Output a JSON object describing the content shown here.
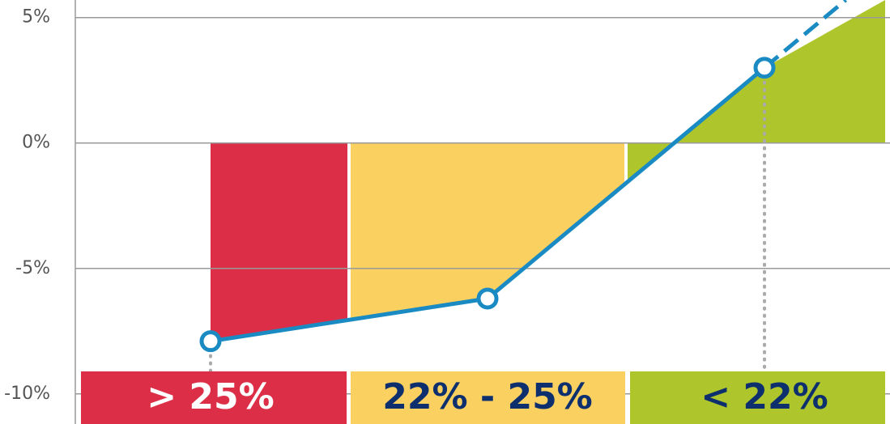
{
  "chart_data": {
    "type": "line",
    "categories": [
      "> 25%",
      "22% - 25%",
      "< 22%"
    ],
    "values": [
      -7.9,
      -6.2,
      3
    ],
    "color": "#1a8ac3",
    "band_colors": [
      "#dc2f47",
      "#fad160",
      "#aec52c"
    ],
    "band_label_colors": [
      "#ffffff",
      "#0d2f6e",
      "#0d2f6e"
    ],
    "ylim": [
      -11.2,
      5.7
    ],
    "yticks": [
      {
        "value": -10,
        "label": "-10%"
      },
      {
        "value": -5,
        "label": "-5%"
      },
      {
        "value": 0,
        "label": "0%"
      },
      {
        "value": 5,
        "label": "5%"
      }
    ],
    "grid": true
  }
}
